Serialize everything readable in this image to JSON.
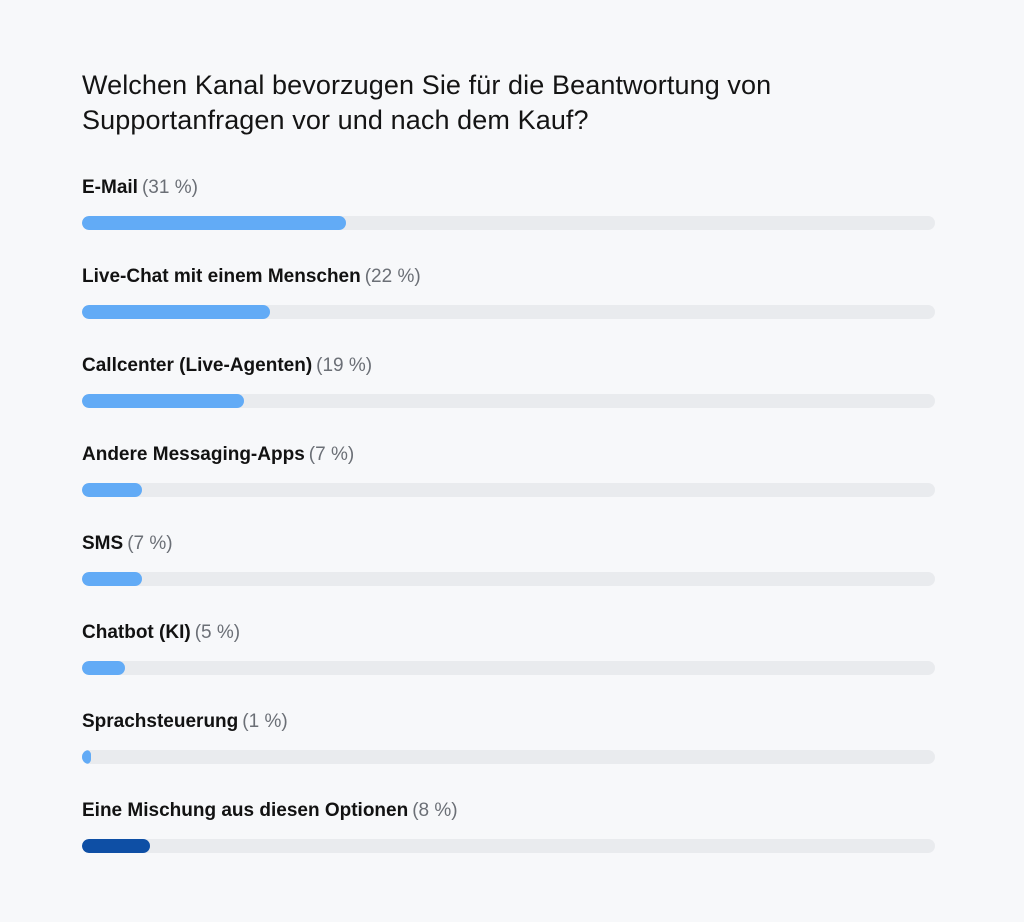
{
  "colors": {
    "primary": "#62abf6",
    "highlight": "#0e4fa5",
    "track": "#e9ebee"
  },
  "chart_data": {
    "type": "bar",
    "orientation": "horizontal",
    "title": "Welchen Kanal bevorzugen Sie für die Beantwortung von Supportanfragen vor und nach dem Kauf?",
    "xlim": [
      0,
      100
    ],
    "grid": false,
    "categories": [
      "E-Mail",
      "Live-Chat mit einem Menschen",
      "Callcenter (Live-Agenten)",
      "Andere Messaging-Apps",
      "SMS",
      "Chatbot (KI)",
      "Sprachsteuerung",
      "Eine Mischung aus diesen Optionen"
    ],
    "values": [
      31,
      22,
      19,
      7,
      7,
      5,
      1,
      8
    ],
    "value_labels": [
      "(31 %)",
      "(22 %)",
      "(19 %)",
      "(7 %)",
      "(7 %)",
      "(5 %)",
      "(1 %)",
      "(8 %)"
    ],
    "highlight_index": 7
  }
}
